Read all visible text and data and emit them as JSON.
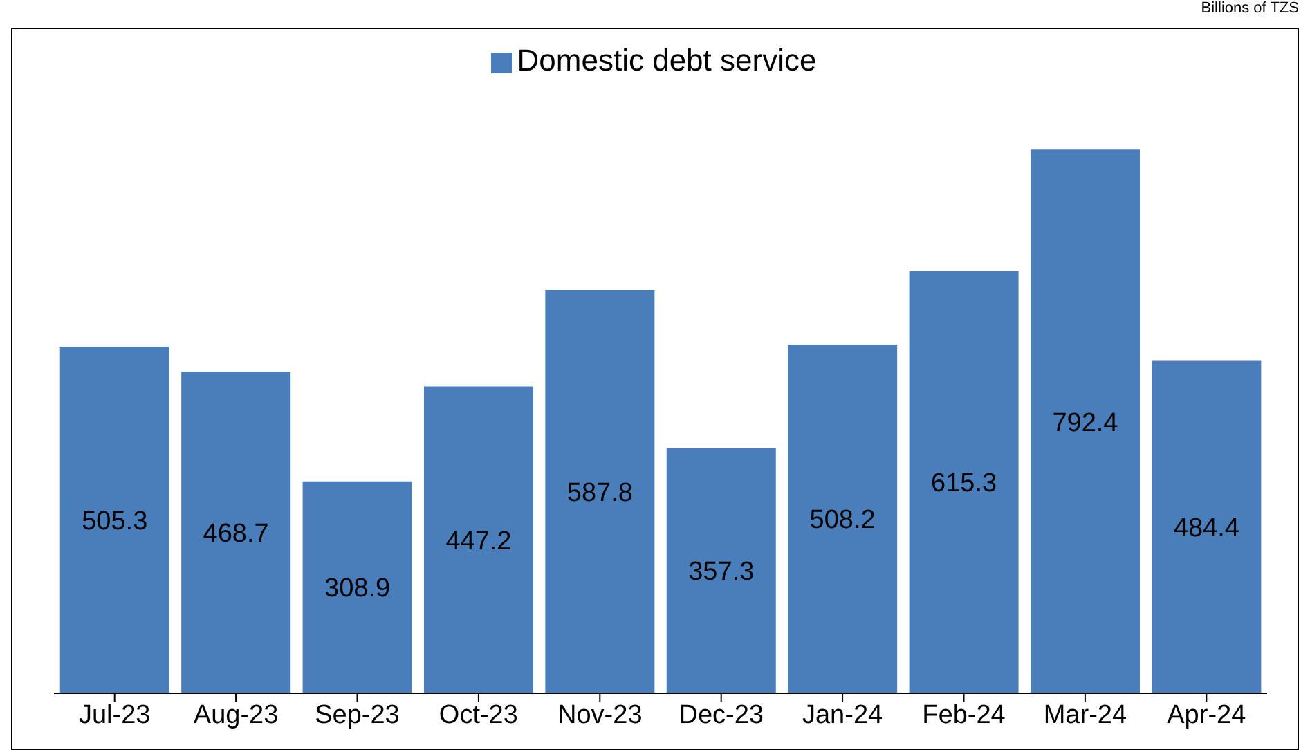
{
  "chart_data": {
    "type": "bar",
    "categories": [
      "Jul-23",
      "Aug-23",
      "Sep-23",
      "Oct-23",
      "Nov-23",
      "Dec-23",
      "Jan-24",
      "Feb-24",
      "Mar-24",
      "Apr-24"
    ],
    "series": [
      {
        "name": "Domestic debt service",
        "color": "#4a7ebb",
        "values": [
          505.3,
          468.7,
          308.9,
          447.2,
          587.8,
          357.3,
          508.2,
          615.3,
          792.4,
          484.4
        ]
      }
    ],
    "data_labels": true,
    "legend": "top",
    "annotations": [
      "Billions of TZS"
    ]
  }
}
